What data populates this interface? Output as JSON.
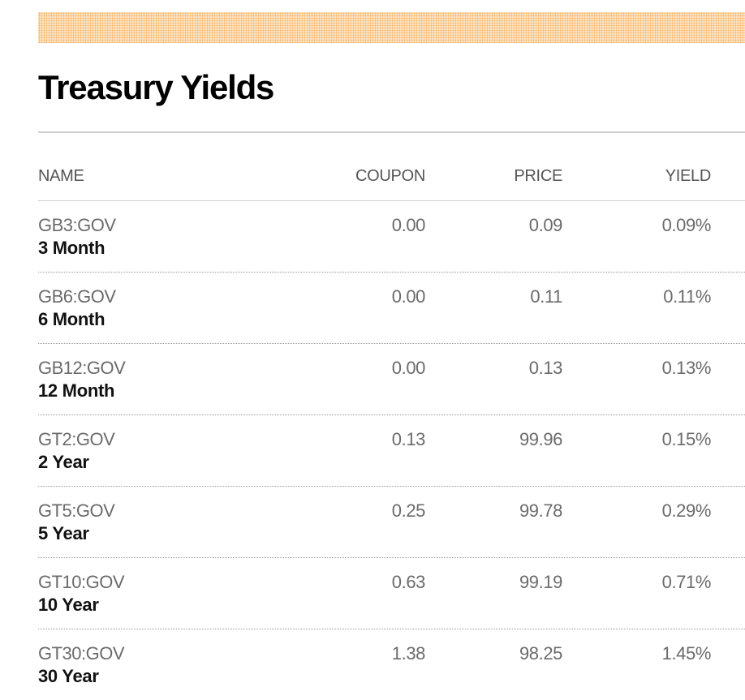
{
  "title": "Treasury Yields",
  "columns": {
    "name": "NAME",
    "coupon": "COUPON",
    "price": "PRICE",
    "yield": "YIELD"
  },
  "rows": [
    {
      "ticker": "GB3:GOV",
      "term": "3 Month",
      "coupon": "0.00",
      "price": "0.09",
      "yield": "0.09%"
    },
    {
      "ticker": "GB6:GOV",
      "term": "6 Month",
      "coupon": "0.00",
      "price": "0.11",
      "yield": "0.11%"
    },
    {
      "ticker": "GB12:GOV",
      "term": "12 Month",
      "coupon": "0.00",
      "price": "0.13",
      "yield": "0.13%"
    },
    {
      "ticker": "GT2:GOV",
      "term": "2 Year",
      "coupon": "0.13",
      "price": "99.96",
      "yield": "0.15%"
    },
    {
      "ticker": "GT5:GOV",
      "term": "5 Year",
      "coupon": "0.25",
      "price": "99.78",
      "yield": "0.29%"
    },
    {
      "ticker": "GT10:GOV",
      "term": "10 Year",
      "coupon": "0.63",
      "price": "99.19",
      "yield": "0.71%"
    },
    {
      "ticker": "GT30:GOV",
      "term": "30 Year",
      "coupon": "1.38",
      "price": "98.25",
      "yield": "1.45%"
    }
  ]
}
